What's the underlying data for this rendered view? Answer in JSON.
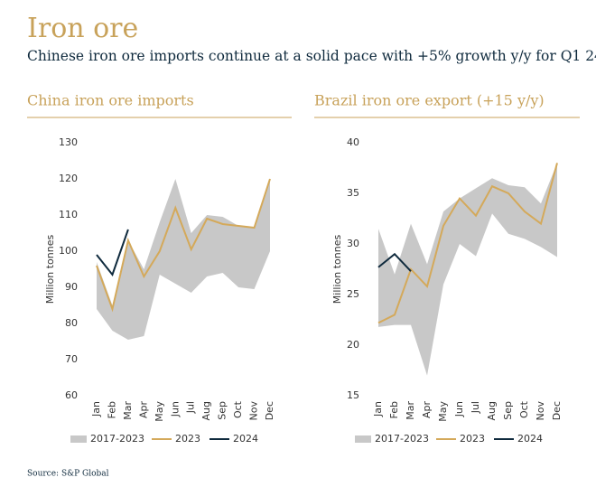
{
  "header": {
    "title": "Iron ore",
    "subtitle": "Chinese iron ore imports continue at a solid pace with +5% growth y/y for Q1 24",
    "source": "Source: S&P Global"
  },
  "chart_data": [
    {
      "type": "line",
      "title": "China iron ore imports",
      "y_label": "Million tonnes",
      "categories": [
        "Jan",
        "Feb",
        "Mar",
        "Apr",
        "May",
        "Jun",
        "Jul",
        "Aug",
        "Sep",
        "Oct",
        "Nov",
        "Dec"
      ],
      "ylim": [
        60,
        130
      ],
      "yticks": [
        60,
        70,
        80,
        90,
        100,
        110,
        120,
        130
      ],
      "series": [
        {
          "name": "2017-2023",
          "color": "#c8c8c8",
          "high": [
            97,
            85,
            103,
            95,
            108,
            120,
            105,
            110,
            109.5,
            107,
            106.5,
            120
          ],
          "low": [
            84,
            78,
            75.5,
            76.5,
            93.5,
            91,
            88.5,
            93,
            94,
            90,
            89.5,
            100
          ]
        },
        {
          "name": "2023",
          "color": "#d4a95a",
          "values": [
            96,
            84,
            103,
            93,
            100,
            112,
            100.5,
            109,
            107.5,
            107,
            106.5,
            120
          ]
        },
        {
          "name": "2024",
          "color": "#0f2a3d",
          "values": [
            99,
            93.5,
            106,
            null,
            null,
            null,
            null,
            null,
            null,
            null,
            null,
            null
          ]
        }
      ]
    },
    {
      "type": "line",
      "title": "Brazil iron ore export (+15 y/y)",
      "y_label": "Million tonnes",
      "categories": [
        "Jan",
        "Feb",
        "Mar",
        "Apr",
        "May",
        "Jun",
        "Jul",
        "Aug",
        "Sep",
        "Oct",
        "Nov",
        "Dec"
      ],
      "ylim": [
        15,
        40
      ],
      "yticks": [
        15,
        20,
        25,
        30,
        35,
        40
      ],
      "series": [
        {
          "name": "2017-2023",
          "color": "#c8c8c8",
          "high": [
            31.5,
            27,
            32,
            28,
            33.2,
            34.5,
            35.5,
            36.5,
            35.8,
            35.6,
            34,
            38
          ],
          "low": [
            21.8,
            22,
            22,
            17,
            26,
            30,
            28.8,
            33,
            31,
            30.5,
            29.7,
            28.7
          ]
        },
        {
          "name": "2023",
          "color": "#d4a95a",
          "values": [
            22.2,
            23,
            27.5,
            25.8,
            31.8,
            34.5,
            32.8,
            35.7,
            35,
            33.2,
            32,
            38
          ]
        },
        {
          "name": "2024",
          "color": "#0f2a3d",
          "values": [
            27.7,
            29,
            27.3,
            null,
            null,
            null,
            null,
            null,
            null,
            null,
            null,
            null
          ]
        }
      ]
    }
  ]
}
